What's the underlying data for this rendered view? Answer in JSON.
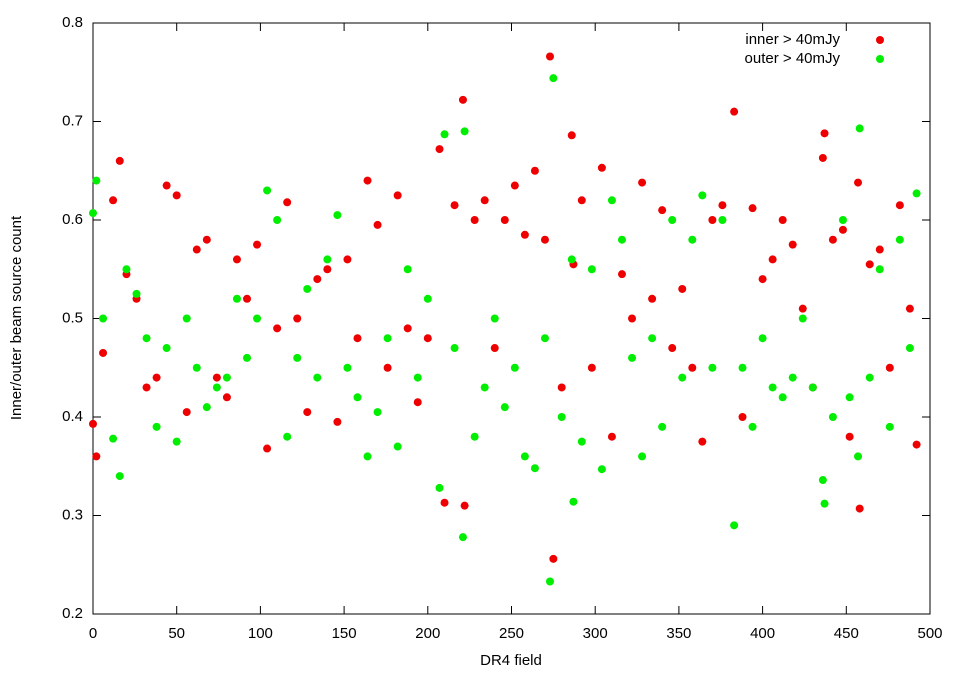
{
  "chart_data": {
    "type": "scatter",
    "xlabel": "DR4 field",
    "ylabel": "Inner/outer beam source count",
    "xlim": [
      0,
      500
    ],
    "ylim": [
      0.2,
      0.8
    ],
    "xticks": [
      0,
      50,
      100,
      150,
      200,
      250,
      300,
      350,
      400,
      450,
      500
    ],
    "yticks": [
      0.2,
      0.3,
      0.4,
      0.5,
      0.6,
      0.7,
      0.8
    ],
    "grid": false,
    "legend": "top-right",
    "x": [
      0,
      2,
      6,
      12,
      16,
      20,
      26,
      32,
      38,
      44,
      50,
      56,
      62,
      68,
      74,
      80,
      86,
      92,
      98,
      104,
      110,
      116,
      122,
      128,
      134,
      140,
      146,
      152,
      158,
      164,
      170,
      176,
      182,
      188,
      194,
      200,
      207,
      210,
      216,
      221,
      222,
      228,
      234,
      240,
      246,
      252,
      258,
      264,
      270,
      273,
      275,
      280,
      286,
      287,
      292,
      298,
      304,
      310,
      316,
      322,
      328,
      334,
      340,
      346,
      352,
      358,
      364,
      370,
      376,
      383,
      388,
      394,
      400,
      406,
      412,
      418,
      424,
      430,
      436,
      437,
      442,
      448,
      452,
      457,
      458,
      464,
      470,
      476,
      482,
      488,
      492
    ],
    "series": [
      {
        "name": "inner > 40mJy",
        "color": "#ee0000",
        "values": [
          0.393,
          0.36,
          0.465,
          0.62,
          0.66,
          0.545,
          0.52,
          0.43,
          0.44,
          0.635,
          0.625,
          0.405,
          0.57,
          0.58,
          0.44,
          0.42,
          0.56,
          0.52,
          0.575,
          0.368,
          0.49,
          0.618,
          0.5,
          0.405,
          0.54,
          0.55,
          0.395,
          0.56,
          0.48,
          0.64,
          0.595,
          0.45,
          0.625,
          0.49,
          0.415,
          0.48,
          0.672,
          0.313,
          0.615,
          0.722,
          0.31,
          0.6,
          0.62,
          0.47,
          0.6,
          0.635,
          0.585,
          0.65,
          0.58,
          0.766,
          0.256,
          0.43,
          0.686,
          0.555,
          0.62,
          0.45,
          0.653,
          0.38,
          0.545,
          0.5,
          0.638,
          0.52,
          0.61,
          0.47,
          0.53,
          0.45,
          0.375,
          0.6,
          0.615,
          0.71,
          0.4,
          0.612,
          0.54,
          0.56,
          0.6,
          0.575,
          0.51,
          0.43,
          0.663,
          0.688,
          0.58,
          0.59,
          0.38,
          0.638,
          0.307,
          0.555,
          0.57,
          0.45,
          0.615,
          0.51,
          0.372
        ]
      },
      {
        "name": "outer > 40mJy",
        "color": "#00ee00",
        "values": [
          0.607,
          0.64,
          0.5,
          0.378,
          0.34,
          0.55,
          0.525,
          0.48,
          0.39,
          0.47,
          0.375,
          0.5,
          0.45,
          0.41,
          0.43,
          0.44,
          0.52,
          0.46,
          0.5,
          0.63,
          0.6,
          0.38,
          0.46,
          0.53,
          0.44,
          0.56,
          0.605,
          0.45,
          0.42,
          0.36,
          0.405,
          0.48,
          0.37,
          0.55,
          0.44,
          0.52,
          0.328,
          0.687,
          0.47,
          0.278,
          0.69,
          0.38,
          0.43,
          0.5,
          0.41,
          0.45,
          0.36,
          0.348,
          0.48,
          0.233,
          0.744,
          0.4,
          0.56,
          0.314,
          0.375,
          0.55,
          0.347,
          0.62,
          0.58,
          0.46,
          0.36,
          0.48,
          0.39,
          0.6,
          0.44,
          0.58,
          0.625,
          0.45,
          0.6,
          0.29,
          0.45,
          0.39,
          0.48,
          0.43,
          0.42,
          0.44,
          0.5,
          0.43,
          0.336,
          0.312,
          0.4,
          0.6,
          0.42,
          0.36,
          0.693,
          0.44,
          0.55,
          0.39,
          0.58,
          0.47,
          0.627
        ]
      }
    ]
  }
}
